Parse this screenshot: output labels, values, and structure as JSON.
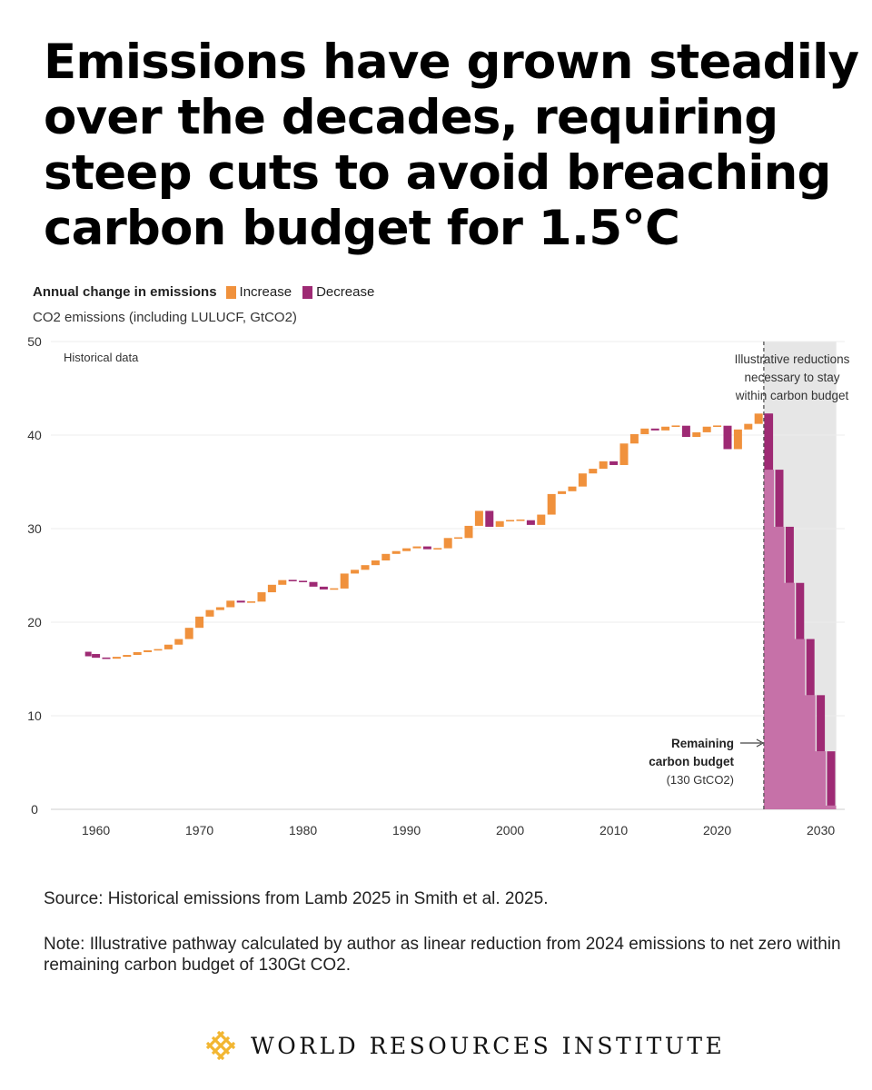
{
  "headline": {
    "lines": [
      "Emissions have grown steadily",
      "over the decades, requiring",
      "steep cuts to avoid breaching",
      "carbon budget for 1.5°C"
    ]
  },
  "legend": {
    "title": "Annual change in emissions",
    "items": [
      {
        "label": "Increase",
        "color": "#F0913C"
      },
      {
        "label": "Decrease",
        "color": "#9E2A74"
      }
    ]
  },
  "chart_subtitle": "CO2 emissions (including  LULUCF, GtCO2)",
  "chart_data": {
    "type": "bar",
    "subtype": "waterfall",
    "ylabel": "CO2 emissions (including  LULUCF, GtCO2)",
    "ylim": [
      0,
      50
    ],
    "yticks": [
      0,
      10,
      20,
      30,
      40,
      50
    ],
    "xlim": [
      1959,
      2032
    ],
    "xticks": [
      1960,
      1970,
      1980,
      1990,
      2000,
      2010,
      2020,
      2030
    ],
    "grid": "horizontal",
    "legend_position": "top-left",
    "colors": {
      "increase": "#F0913C",
      "decrease": "#9E2A74",
      "budget_fill": "#C46AA4",
      "projection_shade": "#E6E6E6"
    },
    "historical": {
      "label": "Historical data",
      "start_year": 1959,
      "x": [
        1959,
        1960,
        1961,
        1962,
        1963,
        1964,
        1965,
        1966,
        1967,
        1968,
        1969,
        1970,
        1971,
        1972,
        1973,
        1974,
        1975,
        1976,
        1977,
        1978,
        1979,
        1980,
        1981,
        1982,
        1983,
        1984,
        1985,
        1986,
        1987,
        1988,
        1989,
        1990,
        1991,
        1992,
        1993,
        1994,
        1995,
        1996,
        1997,
        1998,
        1999,
        2000,
        2001,
        2002,
        2003,
        2004,
        2005,
        2006,
        2007,
        2008,
        2009,
        2010,
        2011,
        2012,
        2013,
        2014,
        2015,
        2016,
        2017,
        2018,
        2019,
        2020,
        2021,
        2022,
        2023,
        2024
      ],
      "values": [
        16.6,
        16.2,
        16.1,
        16.3,
        16.5,
        16.8,
        17.0,
        17.1,
        17.6,
        18.2,
        19.4,
        20.6,
        21.3,
        21.6,
        22.3,
        22.1,
        22.2,
        23.2,
        24.0,
        24.5,
        24.4,
        24.3,
        23.8,
        23.5,
        23.6,
        25.2,
        25.6,
        26.1,
        26.6,
        27.3,
        27.6,
        27.9,
        28.1,
        27.8,
        27.9,
        29.0,
        29.0,
        30.3,
        31.9,
        30.2,
        30.8,
        30.9,
        30.9,
        30.4,
        31.5,
        33.7,
        34.0,
        34.5,
        35.9,
        36.4,
        37.2,
        36.8,
        39.1,
        40.1,
        40.7,
        40.5,
        40.9,
        41.0,
        39.8,
        40.3,
        40.9,
        41.0,
        38.5,
        40.6,
        41.2,
        42.3
      ],
      "annotation": "Historical data"
    },
    "projection": {
      "label": "Illustrative   reductions necessary to stay within carbon budget",
      "x": [
        2025,
        2026,
        2027,
        2028,
        2029,
        2030,
        2031
      ],
      "values": [
        36.3,
        30.2,
        24.2,
        18.2,
        12.2,
        6.2,
        0.4
      ]
    },
    "budget_annotation": {
      "lines": [
        "Remaining",
        "carbon budget"
      ],
      "detail": "(130 GtCO2)"
    },
    "projection_start_year": 2024.5
  },
  "source": "Source: Historical emissions from Lamb 2025 in Smith et al. 2025.",
  "note": "Note: Illustrative pathway calculated by author as linear reduction from 2024 emissions to net zero within remaining carbon budget of 130Gt CO2.",
  "brand": {
    "name": "WORLD RESOURCES INSTITUTE",
    "logo_icon": "wri-lattice-logo-icon",
    "logo_color": "#F2B632"
  }
}
